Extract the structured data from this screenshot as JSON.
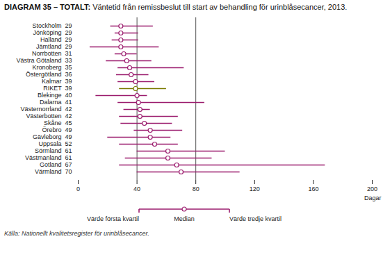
{
  "chart_data": {
    "type": "range",
    "title": "DIAGRAM 35 – TOTALT:",
    "subtitle": "Väntetid från remissbeslut till start av behandling för urinblåsecancer, 2013.",
    "xlabel": "Dagar",
    "caption": "Källa: Nationellt kvalitetsregister för urinblåsecancer.",
    "xlim": [
      0,
      200
    ],
    "xticks": [
      0,
      40,
      80,
      120,
      160,
      200
    ],
    "reference_lines": [
      40,
      80
    ],
    "legend": "bottom",
    "color": "#9b1c6e",
    "categories": [
      "Stockholm  29",
      "Jönköping  29",
      "Halland  29",
      "Jämtland  29",
      "Norrbotten  31",
      "Västra Götaland  33",
      "Kronoberg  35",
      "Östergötland  36",
      "Kalmar  39",
      "RIKET  39",
      "Blekinge  40",
      "Dalarna  41",
      "Västernorrland  42",
      "Västerbotten  42",
      "Skåne  45",
      "Örebro  49",
      "Gävleborg  49",
      "Uppsala  52",
      "Sörmland  61",
      "Västmanland  61",
      "Gotland  67",
      "Värmland  70"
    ],
    "colors": [
      "#9b1c6e",
      "#9b1c6e",
      "#9b1c6e",
      "#9b1c6e",
      "#9b1c6e",
      "#9b1c6e",
      "#9b1c6e",
      "#9b1c6e",
      "#9b1c6e",
      "#7a7a00",
      "#9b1c6e",
      "#9b1c6e",
      "#9b1c6e",
      "#9b1c6e",
      "#9b1c6e",
      "#9b1c6e",
      "#9b1c6e",
      "#9b1c6e",
      "#9b1c6e",
      "#9b1c6e",
      "#9b1c6e",
      "#9b1c6e"
    ],
    "series": [
      {
        "name": "Värde första kvartil",
        "values": [
          22,
          25,
          23,
          8,
          25,
          19,
          27,
          26,
          27,
          28,
          12,
          27,
          31,
          28,
          29,
          38,
          20,
          28,
          40,
          32,
          28,
          40
        ]
      },
      {
        "name": "Median",
        "values": [
          29,
          29,
          29,
          29,
          31,
          33,
          35,
          36,
          39,
          39,
          40,
          41,
          42,
          42,
          45,
          49,
          49,
          52,
          61,
          61,
          67,
          70
        ]
      },
      {
        "name": "Värde tredje kvartil",
        "values": [
          51,
          41,
          41,
          55,
          40,
          50,
          72,
          48,
          52,
          60,
          47,
          86,
          49,
          68,
          64,
          71,
          63,
          68,
          100,
          91,
          168,
          110
        ]
      }
    ]
  }
}
